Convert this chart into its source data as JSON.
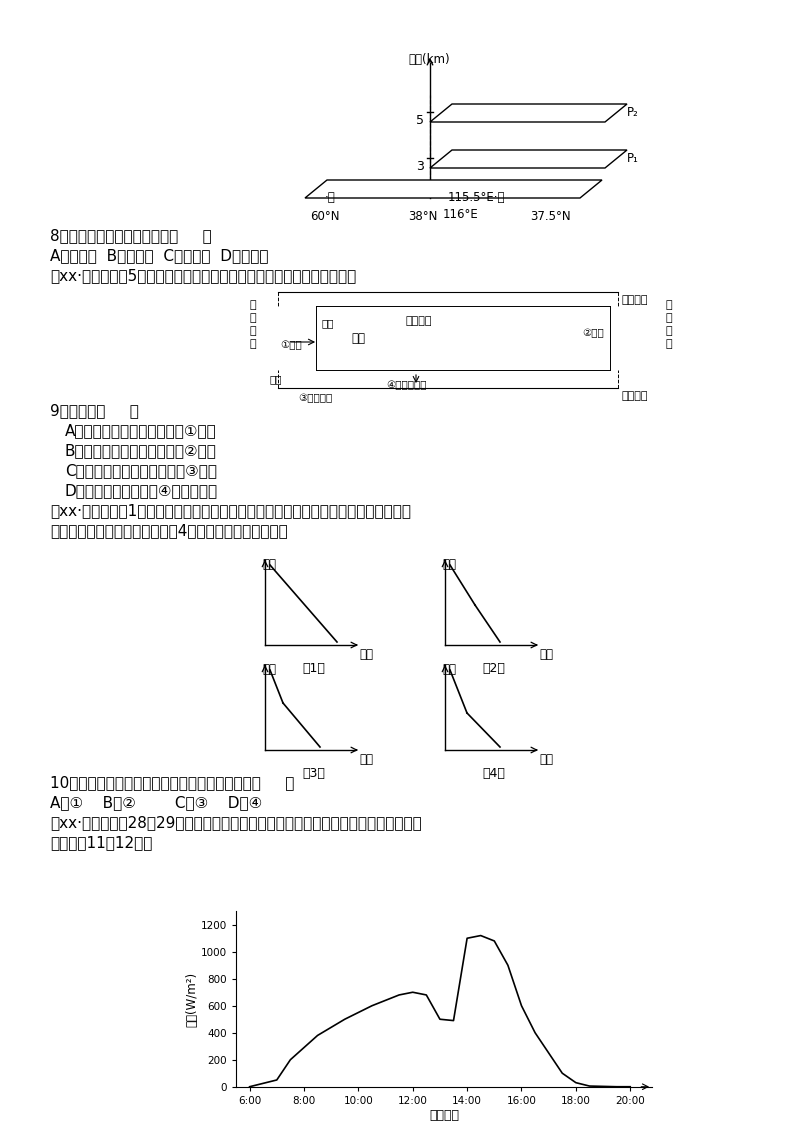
{
  "bg_color": "#ffffff",
  "page_width": 8.0,
  "page_height": 11.32,
  "question8_text": "8．此时甲地近地面的风向为（     ）",
  "question8_options": "A．东南风  B．西南风  C．东北风  D．西北风",
  "intro9_text": "（xx·北京文综，5）下图为地球大气受热过程示意图。读图，回答下题。",
  "question9_text": "9．大气中（     ）",
  "question9_A": "A．臭氧层遭到破坏，会导致①增加",
  "question9_B": "B．二氧化碳浓度降低，会使②减少",
  "question9_C": "C．可吸入颗粒物增加，会使③增加",
  "question9_D": "D．出现雾霾，会导致④在夜间减少",
  "intro10_line1": "（xx·浙江文综，1）近年来，雾霾天气在我国频繁出现，空气质量问题已引起全社会高",
  "intro10_line2": "度关注。下图是气温垂直分布的4种情形。读图完成下题。",
  "question10_text": "10．图中最有利于雾霾大气污染物扩散的情形是（     ）",
  "question10_options": "A．①    B．②        C．③    D．④",
  "intro11_line1": "（xx·安徽文综，28～29）下图表示我国某地某日测试记录的到达地面的太阳辐射日变",
  "intro11_line2": "化。完成11～12题。",
  "solar_times": [
    6.0,
    7.0,
    7.5,
    8.5,
    9.5,
    10.5,
    11.5,
    12.0,
    12.5,
    13.0,
    13.5,
    14.0,
    14.5,
    15.0,
    15.5,
    16.0,
    16.5,
    17.0,
    17.5,
    18.0,
    18.5,
    19.5,
    20.0
  ],
  "solar_values": [
    0,
    50,
    200,
    380,
    500,
    600,
    680,
    700,
    680,
    500,
    490,
    1100,
    1120,
    1080,
    900,
    600,
    400,
    250,
    100,
    30,
    5,
    0,
    0
  ],
  "solar_xlabel": "北京时间",
  "solar_ylabel": "辐射(W/m²)",
  "solar_yticks": [
    0,
    200,
    400,
    600,
    800,
    1000,
    1200
  ],
  "solar_xticks": [
    "6:00",
    "8:00",
    "10:00",
    "12:00",
    "14:00",
    "16:00",
    "18:00",
    "20:00"
  ],
  "solar_xtick_vals": [
    6.0,
    8.0,
    10.0,
    12.0,
    14.0,
    16.0,
    18.0,
    20.0
  ]
}
